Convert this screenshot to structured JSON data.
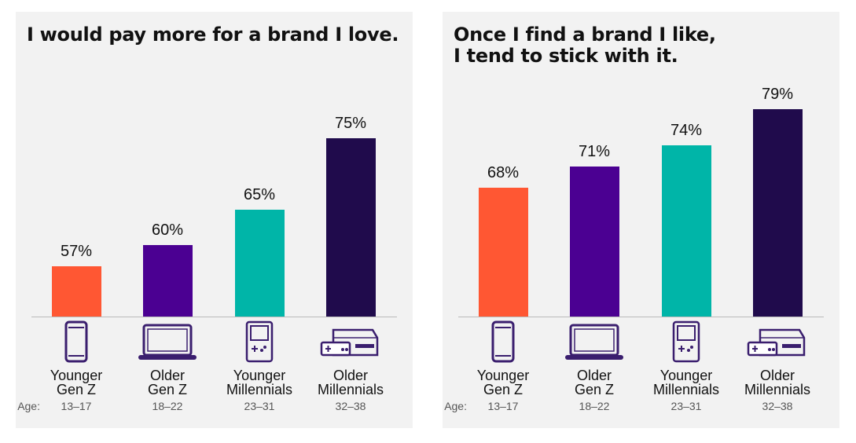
{
  "chart_data": [
    {
      "type": "bar",
      "title": "I would pay more for a brand I love.",
      "categories": [
        "Younger\nGen Z",
        "Older\nGen Z",
        "Younger\nMillennials",
        "Older\nMillennials"
      ],
      "age_prefix": "Age:",
      "ages": [
        "13–17",
        "18–22",
        "23–31",
        "32–38"
      ],
      "values": [
        57,
        60,
        65,
        75
      ],
      "value_labels": [
        "57%",
        "60%",
        "65%",
        "75%"
      ],
      "colors": [
        "#ff5733",
        "#4b0092",
        "#00b5a8",
        "#200b4c"
      ],
      "ylim": [
        50,
        80
      ]
    },
    {
      "type": "bar",
      "title": "Once I find a brand I like,\nI tend to stick with it.",
      "categories": [
        "Younger\nGen Z",
        "Older\nGen Z",
        "Younger\nMillennials",
        "Older\nMillennials"
      ],
      "age_prefix": "Age:",
      "ages": [
        "13–17",
        "18–22",
        "23–31",
        "32–38"
      ],
      "values": [
        68,
        71,
        74,
        79
      ],
      "value_labels": [
        "68%",
        "71%",
        "74%",
        "79%"
      ],
      "colors": [
        "#ff5733",
        "#4b0092",
        "#00b5a8",
        "#200b4c"
      ],
      "ylim": [
        50,
        80
      ]
    }
  ]
}
